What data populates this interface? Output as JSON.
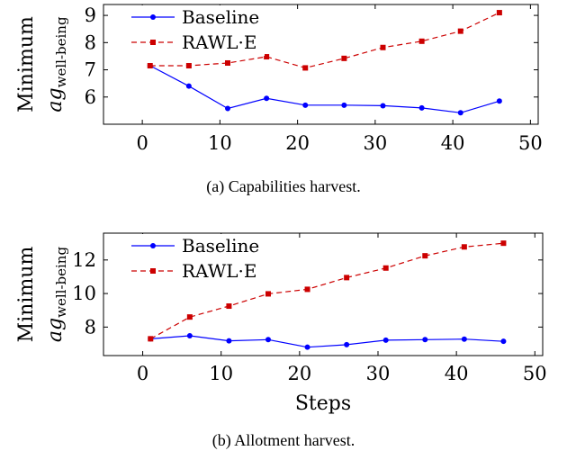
{
  "chart_data": [
    {
      "type": "line",
      "caption": "(a) Capabilities harvest.",
      "ylabel_main": "Minimum",
      "ylabel_var": "ag",
      "ylabel_sub": "well-being",
      "xlabel": "",
      "xlim": [
        -5,
        51
      ],
      "ylim": [
        5.0,
        9.4
      ],
      "xticks": [
        0,
        10,
        20,
        30,
        40,
        50
      ],
      "yticks": [
        6,
        7,
        8,
        9
      ],
      "legend_position": "top-left",
      "series": [
        {
          "name": "Baseline",
          "color": "#0000ff",
          "style": "solid",
          "marker": "circle",
          "x": [
            1,
            6,
            11,
            16,
            21,
            26,
            31,
            36,
            41,
            46
          ],
          "y": [
            7.15,
            6.4,
            5.58,
            5.95,
            5.7,
            5.7,
            5.68,
            5.6,
            5.42,
            5.85
          ]
        },
        {
          "name": "RAWL·E",
          "color": "#cc0000",
          "style": "dashed",
          "marker": "square",
          "x": [
            1,
            6,
            11,
            16,
            21,
            26,
            31,
            36,
            41,
            46
          ],
          "y": [
            7.15,
            7.15,
            7.25,
            7.48,
            7.07,
            7.42,
            7.82,
            8.05,
            8.42,
            9.1
          ]
        }
      ]
    },
    {
      "type": "line",
      "caption": "(b) Allotment harvest.",
      "ylabel_main": "Minimum",
      "ylabel_var": "ag",
      "ylabel_sub": "well-being",
      "xlabel": "Steps",
      "xlim": [
        -5,
        51
      ],
      "ylim": [
        6.3,
        13.6
      ],
      "xticks": [
        0,
        10,
        20,
        30,
        40,
        50
      ],
      "yticks": [
        8,
        10,
        12
      ],
      "legend_position": "top-left",
      "series": [
        {
          "name": "Baseline",
          "color": "#0000ff",
          "style": "solid",
          "marker": "circle",
          "x": [
            1,
            6,
            11,
            16,
            21,
            26,
            31,
            36,
            41,
            46
          ],
          "y": [
            7.3,
            7.48,
            7.18,
            7.25,
            6.8,
            6.95,
            7.22,
            7.25,
            7.28,
            7.15
          ]
        },
        {
          "name": "RAWL·E",
          "color": "#cc0000",
          "style": "dashed",
          "marker": "square",
          "x": [
            1,
            6,
            11,
            16,
            21,
            26,
            31,
            36,
            41,
            46
          ],
          "y": [
            7.3,
            8.6,
            9.25,
            9.98,
            10.25,
            10.95,
            11.52,
            12.25,
            12.78,
            13.0
          ]
        }
      ]
    }
  ]
}
